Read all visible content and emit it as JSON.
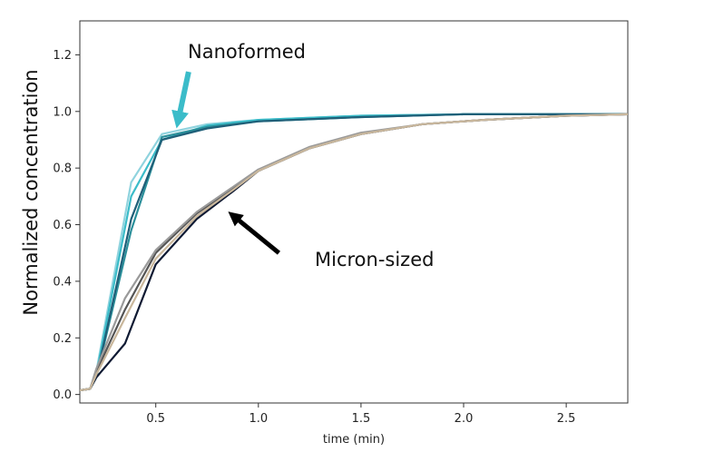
{
  "chart_data": {
    "type": "line",
    "title": "",
    "xlabel": "time (min)",
    "ylabel": "Normalized concentration",
    "xlim": [
      0.13,
      2.8
    ],
    "ylim": [
      -0.03,
      1.32
    ],
    "xticks": [
      0.5,
      1.0,
      1.5,
      2.0,
      2.5
    ],
    "xtick_labels": [
      "0.5",
      "1.0",
      "1.5",
      "2.0",
      "2.5"
    ],
    "yticks": [
      0.0,
      0.2,
      0.4,
      0.6,
      0.8,
      1.0,
      1.2
    ],
    "ytick_labels": [
      "0.0",
      "0.2",
      "0.4",
      "0.6",
      "0.8",
      "1.0",
      "1.2"
    ],
    "grid": false,
    "series": [
      {
        "name": "Nanoformed 1",
        "group": "Nanoformed",
        "color": "#8fd3de",
        "x": [
          0.13,
          0.18,
          0.21,
          0.38,
          0.53,
          0.75,
          1.0,
          1.5,
          2.0,
          2.5,
          2.8
        ],
        "y": [
          0.015,
          0.02,
          0.08,
          0.75,
          0.92,
          0.955,
          0.97,
          0.985,
          0.99,
          0.99,
          0.99
        ]
      },
      {
        "name": "Nanoformed 2",
        "group": "Nanoformed",
        "color": "#3bbcc9",
        "x": [
          0.13,
          0.18,
          0.21,
          0.38,
          0.53,
          0.75,
          1.0,
          1.5,
          2.0,
          2.5,
          2.8
        ],
        "y": [
          0.015,
          0.02,
          0.07,
          0.7,
          0.9,
          0.95,
          0.97,
          0.985,
          0.99,
          0.99,
          0.99
        ]
      },
      {
        "name": "Nanoformed 3",
        "group": "Nanoformed",
        "color": "#2b8f9a",
        "x": [
          0.13,
          0.18,
          0.21,
          0.38,
          0.53,
          0.75,
          1.0,
          1.5,
          2.0,
          2.5,
          2.8
        ],
        "y": [
          0.015,
          0.02,
          0.06,
          0.58,
          0.91,
          0.945,
          0.965,
          0.98,
          0.99,
          0.99,
          0.99
        ]
      },
      {
        "name": "Nanoformed 4",
        "group": "Nanoformed",
        "color": "#1f5f78",
        "x": [
          0.13,
          0.18,
          0.21,
          0.38,
          0.53,
          0.75,
          1.0,
          1.5,
          2.0,
          2.5,
          2.8
        ],
        "y": [
          0.015,
          0.02,
          0.06,
          0.62,
          0.9,
          0.94,
          0.965,
          0.98,
          0.99,
          0.99,
          0.99
        ]
      },
      {
        "name": "Micron-sized 1",
        "group": "Micron-sized",
        "color": "#0f1a33",
        "x": [
          0.13,
          0.18,
          0.21,
          0.35,
          0.5,
          0.7,
          0.88,
          1.0,
          1.25,
          1.5,
          1.8,
          2.1,
          2.5,
          2.8
        ],
        "y": [
          0.015,
          0.02,
          0.06,
          0.18,
          0.46,
          0.62,
          0.72,
          0.79,
          0.87,
          0.92,
          0.955,
          0.97,
          0.985,
          0.99
        ]
      },
      {
        "name": "Micron-sized 2",
        "group": "Micron-sized",
        "color": "#555555",
        "x": [
          0.13,
          0.18,
          0.21,
          0.35,
          0.5,
          0.7,
          0.88,
          1.0,
          1.25,
          1.5,
          1.8,
          2.1,
          2.5,
          2.8
        ],
        "y": [
          0.015,
          0.02,
          0.08,
          0.3,
          0.5,
          0.64,
          0.73,
          0.79,
          0.87,
          0.92,
          0.955,
          0.97,
          0.985,
          0.99
        ]
      },
      {
        "name": "Micron-sized 3",
        "group": "Micron-sized",
        "color": "#9a9a9a",
        "x": [
          0.13,
          0.18,
          0.21,
          0.35,
          0.5,
          0.7,
          0.88,
          1.0,
          1.25,
          1.5,
          1.8,
          2.1,
          2.5,
          2.8
        ],
        "y": [
          0.015,
          0.02,
          0.09,
          0.34,
          0.51,
          0.645,
          0.735,
          0.795,
          0.875,
          0.925,
          0.955,
          0.97,
          0.985,
          0.99
        ]
      },
      {
        "name": "Micron-sized 4",
        "group": "Micron-sized",
        "color": "#c9b79c",
        "x": [
          0.13,
          0.18,
          0.21,
          0.35,
          0.5,
          0.7,
          0.88,
          1.0,
          1.25,
          1.5,
          1.8,
          2.1,
          2.5,
          2.8
        ],
        "y": [
          0.015,
          0.02,
          0.07,
          0.27,
          0.48,
          0.63,
          0.725,
          0.79,
          0.87,
          0.92,
          0.955,
          0.97,
          0.985,
          0.99
        ]
      }
    ],
    "annotations": [
      {
        "text": "Nanoformed",
        "arrow_color": "#3bbcc9",
        "arrow_from": [
          0.66,
          1.14
        ],
        "arrow_to": [
          0.61,
          0.97
        ]
      },
      {
        "text": "Micron-sized",
        "arrow_color": "#000000",
        "arrow_from": [
          1.1,
          0.5
        ],
        "arrow_to": [
          0.88,
          0.63
        ]
      }
    ]
  }
}
